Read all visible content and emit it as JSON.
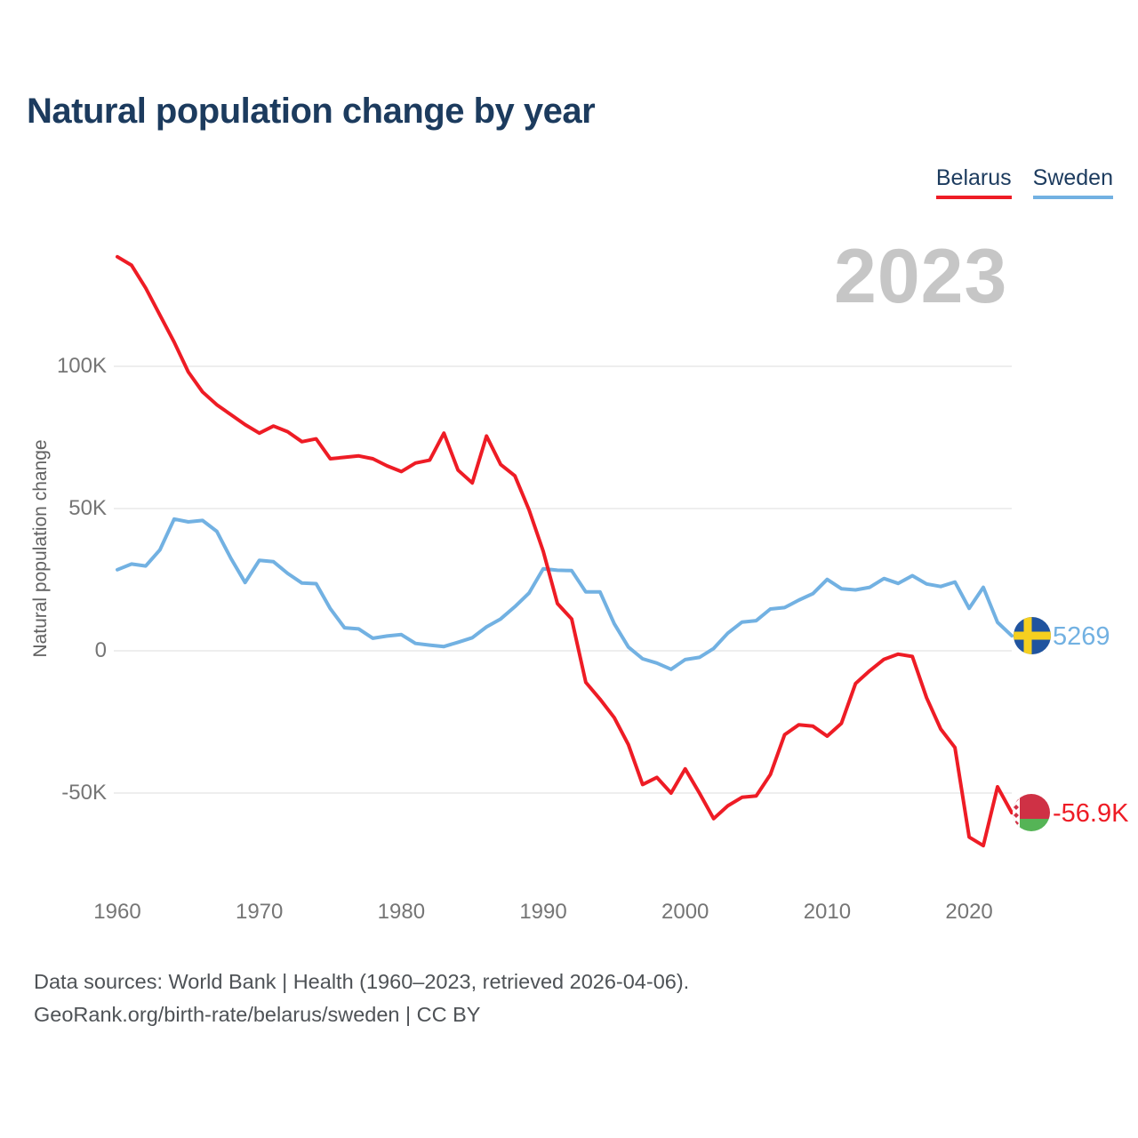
{
  "title": "Natural population change by year",
  "watermark": "2023",
  "legend": {
    "items": [
      {
        "label": "Belarus",
        "color": "#ee1c25"
      },
      {
        "label": "Sweden",
        "color": "#72b1e2"
      }
    ]
  },
  "y_axis": {
    "title": "Natural population change",
    "ticks": [
      {
        "label": "100K",
        "value": 100000
      },
      {
        "label": "50K",
        "value": 50000
      },
      {
        "label": "0",
        "value": 0
      },
      {
        "label": "-50K",
        "value": -50000
      }
    ]
  },
  "x_axis": {
    "ticks": [
      "1960",
      "1970",
      "1980",
      "1990",
      "2000",
      "2010",
      "2020"
    ]
  },
  "end_labels": {
    "sweden": "5269",
    "belarus": "-56.9K"
  },
  "footer": {
    "line1": "Data sources: World Bank | Health (1960–2023, retrieved 2026-04-06).",
    "line2": "GeoRank.org/birth-rate/belarus/sweden | CC BY"
  },
  "flags": {
    "sweden": {
      "blue": "#20549f",
      "yellow": "#f5cf1f"
    },
    "belarus": {
      "red": "#cf3145",
      "green": "#55b456",
      "white": "#ffffff"
    }
  },
  "chart_data": {
    "type": "line",
    "x_start": 1960,
    "x_end": 2023,
    "x_step": 1,
    "title": "Natural population change by year",
    "ylabel": "Natural population change",
    "ylim": [
      -75000,
      145000
    ],
    "grid": "horizontal",
    "legend_position": "top-right",
    "series": [
      {
        "name": "Belarus",
        "color": "#ee1c25",
        "final_value_label": "-56.9K",
        "values": [
          138500,
          135500,
          127500,
          118000,
          108500,
          98000,
          91000,
          86500,
          83000,
          79500,
          76500,
          79000,
          77000,
          73500,
          74500,
          67500,
          68000,
          68500,
          67500,
          65000,
          63000,
          66000,
          67000,
          76500,
          63500,
          59000,
          75500,
          65500,
          61500,
          49500,
          35000,
          16600,
          11200,
          -11100,
          -17000,
          -23500,
          -33000,
          -47000,
          -44500,
          -50000,
          -41500,
          -50000,
          -59000,
          -54500,
          -51500,
          -51000,
          -43500,
          -29500,
          -26000,
          -26500,
          -30000,
          -25500,
          -11500,
          -7000,
          -3000,
          -1200,
          -2000,
          -16500,
          -27500,
          -34000,
          -65500,
          -68500,
          -47800,
          -56900
        ]
      },
      {
        "name": "Sweden",
        "color": "#72b1e2",
        "final_value_label": "5269",
        "values": [
          28500,
          30500,
          29800,
          35500,
          46300,
          45300,
          45800,
          42000,
          32500,
          24000,
          31800,
          31300,
          27200,
          23800,
          23600,
          14800,
          8100,
          7700,
          4400,
          5200,
          5700,
          2600,
          2000,
          1500,
          3000,
          4600,
          8400,
          11200,
          15500,
          20300,
          28800,
          28300,
          28200,
          20700,
          20700,
          9500,
          1300,
          -2800,
          -4300,
          -6500,
          -3100,
          -2300,
          800,
          6200,
          10100,
          10600,
          14700,
          15200,
          17800,
          20100,
          25100,
          21800,
          21400,
          22300,
          25400,
          23700,
          26400,
          23500,
          22600,
          24200,
          14900,
          22300,
          10000,
          5269
        ]
      }
    ]
  }
}
